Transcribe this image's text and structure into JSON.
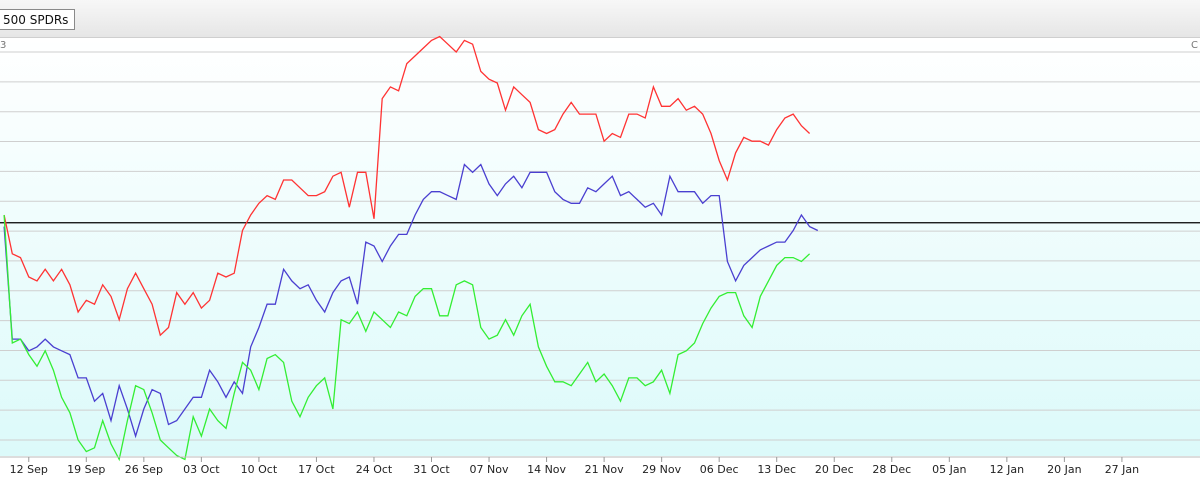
{
  "toolbar": {
    "ticker_label": "500 SPDRs"
  },
  "corner": {
    "left": "3",
    "right": "C"
  },
  "colors": {
    "series_red": "#ff3333",
    "series_blue": "#4a3fd0",
    "series_green": "#33ee33",
    "grid": "#cfcfcf",
    "baseline": "#000000",
    "fill_top": "#ffffff",
    "fill_bottom": "#dcfafa"
  },
  "chart_data": {
    "type": "line",
    "ylim": [
      0,
      100
    ],
    "xlim": [
      -0.5,
      145.5
    ],
    "baseline": 56,
    "grid": true,
    "x_tick_labels": [
      "12 Sep",
      "19 Sep",
      "26 Sep",
      "03 Oct",
      "10 Oct",
      "17 Oct",
      "24 Oct",
      "31 Oct",
      "07 Nov",
      "14 Nov",
      "21 Nov",
      "29 Nov",
      "06 Dec",
      "13 Dec",
      "20 Dec",
      "28 Dec",
      "05 Jan",
      "12 Jan",
      "20 Jan",
      "27 Jan"
    ],
    "x_tick_index": [
      3,
      10,
      17,
      24,
      31,
      38,
      45,
      52,
      59,
      66,
      73,
      80,
      87,
      94,
      101,
      108,
      115,
      122,
      129,
      136
    ],
    "series": [
      {
        "color": "red",
        "values": [
          58,
          48,
          47,
          42,
          41,
          44,
          41,
          44,
          40,
          33,
          36,
          35,
          40,
          37,
          31,
          39,
          43,
          39,
          35,
          27,
          29,
          38,
          35,
          38,
          34,
          36,
          43,
          42,
          43,
          54,
          58,
          61,
          63,
          62,
          67,
          67,
          65,
          63,
          63,
          64,
          68,
          69,
          60,
          69,
          69,
          57,
          88,
          91,
          90,
          97,
          99,
          101,
          103,
          104,
          102,
          100,
          103,
          102,
          95,
          93,
          92,
          85,
          91,
          89,
          87,
          80,
          79,
          80,
          84,
          87,
          84,
          84,
          84,
          77,
          79,
          78,
          84,
          84,
          83,
          91,
          86,
          86,
          88,
          85,
          86,
          84,
          79,
          72,
          67,
          74,
          78,
          77,
          77,
          76,
          80,
          83,
          84,
          81,
          79
        ]
      },
      {
        "color": "blue",
        "values": [
          55,
          26,
          26,
          23,
          24,
          26,
          24,
          23,
          22,
          16,
          16,
          10,
          12,
          5,
          14,
          8,
          1,
          8,
          13,
          12,
          4,
          5,
          8,
          11,
          11,
          18,
          15,
          11,
          15,
          12,
          24,
          29,
          35,
          35,
          44,
          41,
          39,
          40,
          36,
          33,
          38,
          41,
          42,
          35,
          51,
          50,
          46,
          50,
          53,
          53,
          58,
          62,
          64,
          64,
          63,
          62,
          71,
          69,
          71,
          66,
          63,
          66,
          68,
          65,
          69,
          69,
          69,
          64,
          62,
          61,
          61,
          65,
          64,
          66,
          68,
          63,
          64,
          62,
          60,
          61,
          58,
          68,
          64,
          64,
          64,
          61,
          63,
          63,
          46,
          41,
          45,
          47,
          49,
          50,
          51,
          51,
          54,
          58,
          55,
          54
        ]
      },
      {
        "color": "green",
        "values": [
          58,
          25,
          26,
          22,
          19,
          23,
          18,
          11,
          7,
          0,
          -3,
          -2,
          5,
          -1,
          -5,
          5,
          14,
          13,
          7,
          0,
          -2,
          -4,
          -5,
          6,
          1,
          8,
          5,
          3,
          12,
          20,
          18,
          13,
          21,
          22,
          20,
          10,
          6,
          11,
          14,
          16,
          8,
          31,
          30,
          33,
          28,
          33,
          31,
          29,
          33,
          32,
          37,
          39,
          39,
          32,
          32,
          40,
          41,
          40,
          29,
          26,
          27,
          31,
          27,
          32,
          35,
          24,
          19,
          15,
          15,
          14,
          17,
          20,
          15,
          17,
          14,
          10,
          16,
          16,
          14,
          15,
          18,
          12,
          22,
          23,
          25,
          30,
          34,
          37,
          38,
          38,
          32,
          29,
          37,
          41,
          45,
          47,
          47,
          46,
          48
        ]
      }
    ]
  }
}
